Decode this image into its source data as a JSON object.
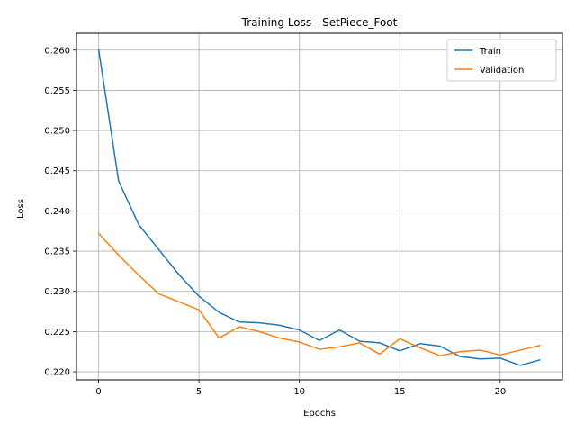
{
  "chart_data": {
    "type": "line",
    "title": "Training Loss - SetPiece_Foot",
    "xlabel": "Epochs",
    "ylabel": "Loss",
    "xlim": [
      -1.1,
      23.1
    ],
    "ylim": [
      0.219,
      0.2621
    ],
    "xticks": [
      0,
      5,
      10,
      15,
      20
    ],
    "yticks": [
      0.22,
      0.225,
      0.23,
      0.235,
      0.24,
      0.245,
      0.25,
      0.255,
      0.26
    ],
    "ytick_format": 3,
    "grid": true,
    "legend": "upper-right",
    "x": [
      0,
      1,
      2,
      3,
      4,
      5,
      6,
      7,
      8,
      9,
      10,
      11,
      12,
      13,
      14,
      15,
      16,
      17,
      18,
      19,
      20,
      21,
      22
    ],
    "series": [
      {
        "name": "Train",
        "color": "#1f77b4",
        "values": [
          0.2601,
          0.2437,
          0.2383,
          0.2352,
          0.2321,
          0.2294,
          0.2274,
          0.2262,
          0.2261,
          0.2258,
          0.2252,
          0.2239,
          0.2252,
          0.2238,
          0.2236,
          0.2226,
          0.2235,
          0.2232,
          0.2219,
          0.2216,
          0.2217,
          0.2208,
          0.2215
        ]
      },
      {
        "name": "Validation",
        "color": "#ff7f0e",
        "values": [
          0.2372,
          0.2345,
          0.232,
          0.2297,
          0.2287,
          0.2277,
          0.2242,
          0.2256,
          0.225,
          0.2242,
          0.2237,
          0.2228,
          0.2231,
          0.2236,
          0.2222,
          0.2241,
          0.223,
          0.222,
          0.2225,
          0.2227,
          0.2221,
          0.2227,
          0.2233
        ]
      }
    ]
  }
}
